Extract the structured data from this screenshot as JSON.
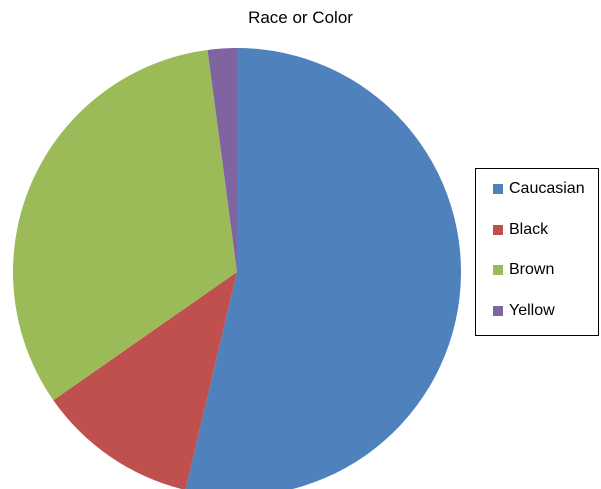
{
  "chart_data": {
    "type": "pie",
    "title": "Race or Color",
    "categories": [
      "Caucasian",
      "Black",
      "Brown",
      "Yellow"
    ],
    "values": [
      53.7,
      11.6,
      32.6,
      2.1
    ],
    "unit": "%",
    "colors": [
      "#4F81BD",
      "#C0504D",
      "#9BBB59",
      "#8064A2"
    ],
    "start_angle": "12 o'clock",
    "direction": "clockwise",
    "legend_position": "right"
  }
}
